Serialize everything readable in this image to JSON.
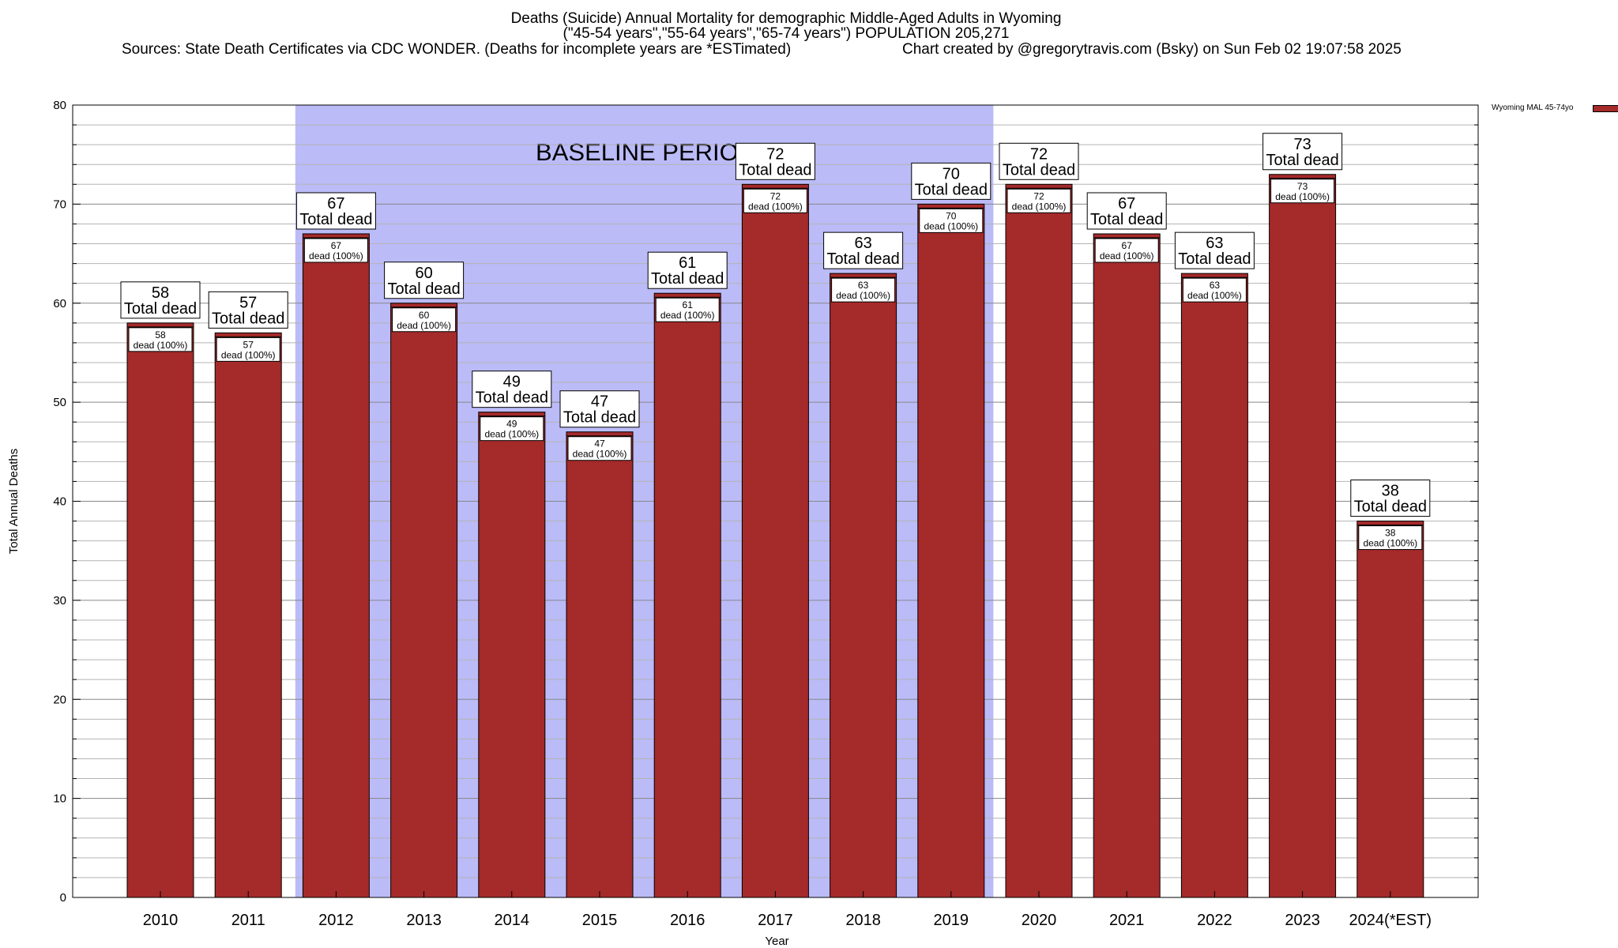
{
  "title": {
    "line1": "Deaths (Suicide) Annual Mortality for demographic Middle-Aged Adults in Wyoming",
    "line2": "(\"45-54 years\",\"55-64 years\",\"65-74 years\") POPULATION 205,271",
    "sources": "Sources: State Death Certificates via CDC WONDER. (Deaths for incomplete years are *ESTimated)",
    "credit": "Chart created by @gregorytravis.com (Bsky) on Sun Feb 02 19:07:58 2025"
  },
  "legend": {
    "series_name": "Wyoming MAL 45-74yo",
    "placement": "top-right"
  },
  "colors": {
    "bar": "#a52a2a",
    "baseline_shade": "#bbbbf8"
  },
  "chart_data": {
    "type": "bar",
    "xlabel": "Year",
    "ylabel": "Total Annual Deaths",
    "ylim": [
      0,
      80
    ],
    "yticks": [
      0,
      10,
      20,
      30,
      40,
      50,
      60,
      70,
      80
    ],
    "grid": true,
    "categories": [
      "2010",
      "2011",
      "2012",
      "2013",
      "2014",
      "2015",
      "2016",
      "2017",
      "2018",
      "2019",
      "2020",
      "2021",
      "2022",
      "2023",
      "2024(*EST)"
    ],
    "series": [
      {
        "name": "Wyoming MAL 45-74yo",
        "values": [
          58,
          57,
          67,
          60,
          49,
          47,
          61,
          72,
          63,
          70,
          72,
          67,
          63,
          73,
          38
        ]
      }
    ],
    "total_label_suffix": "Total dead",
    "segment_label_suffix": "dead (100%)",
    "annotations": [
      {
        "text": "BASELINE PERIOD",
        "x_start": "2012",
        "x_end": "2019"
      }
    ]
  }
}
